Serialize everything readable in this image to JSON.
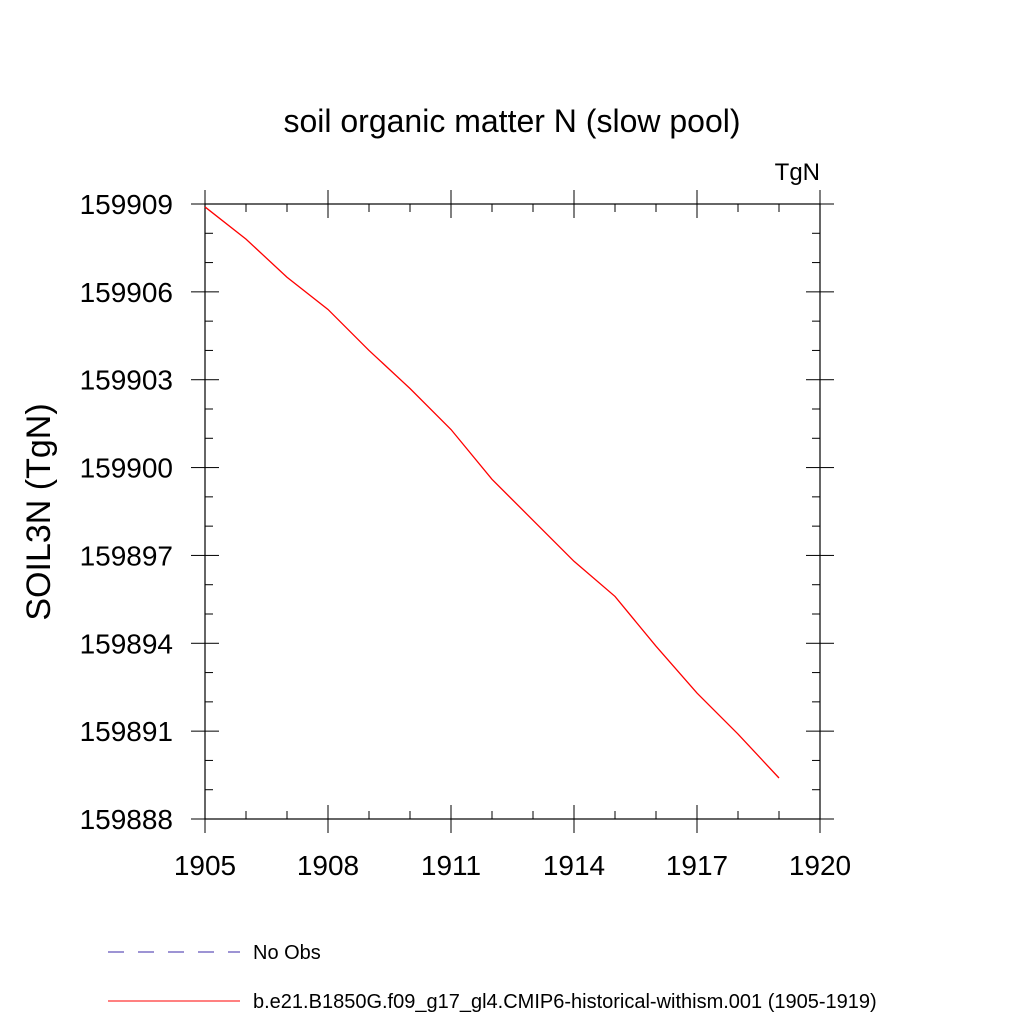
{
  "chart_data": {
    "type": "line",
    "title": "soil organic matter N (slow pool)",
    "units": "TgN",
    "xlabel": "",
    "ylabel": "SOIL3N  (TgN)",
    "xlim": [
      1905,
      1920
    ],
    "ylim": [
      159888,
      159909
    ],
    "x_ticks": [
      1905,
      1908,
      1911,
      1914,
      1917,
      1920
    ],
    "y_ticks": [
      159888,
      159891,
      159894,
      159897,
      159900,
      159903,
      159906,
      159909
    ],
    "grid": false,
    "legend_position": "bottom",
    "series": [
      {
        "name": "No Obs",
        "color": "#3b2aa8",
        "style": "dashed",
        "x": [],
        "y": []
      },
      {
        "name": "b.e21.B1850G.f09_g17_gl4.CMIP6-historical-withism.001 (1905-1919)",
        "color": "#ff0000",
        "style": "solid",
        "x": [
          1905,
          1906,
          1907,
          1908,
          1909,
          1910,
          1911,
          1912,
          1913,
          1914,
          1915,
          1916,
          1917,
          1918,
          1919
        ],
        "y": [
          159908.9,
          159907.8,
          159906.5,
          159905.4,
          159904.0,
          159902.7,
          159901.3,
          159899.6,
          159898.2,
          159896.8,
          159895.6,
          159893.9,
          159892.3,
          159890.9,
          159889.4
        ]
      }
    ]
  }
}
